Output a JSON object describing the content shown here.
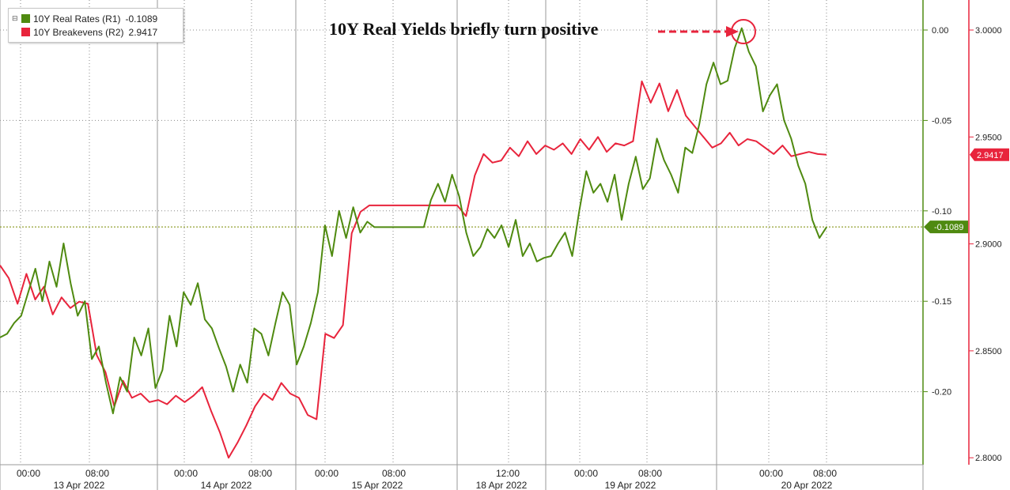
{
  "colors": {
    "green": "#4f8a10",
    "red": "#e8243c",
    "grid": "#8a8a8a",
    "text": "#222222"
  },
  "legend": {
    "toggle_icon": "collapse-toggle-icon",
    "items": [
      {
        "label": "10Y Real Rates (R1)",
        "value": "-0.1089"
      },
      {
        "label": "10Y Breakevens (R2)",
        "value": "2.9417"
      }
    ]
  },
  "annotation": {
    "text": "10Y Real Yields briefly turn positive"
  },
  "chart_data": {
    "type": "line",
    "x_day_labels": [
      "13 Apr 2022",
      "14 Apr 2022",
      "15 Apr 2022",
      "18 Apr 2022",
      "19 Apr 2022",
      "20 Apr 2022"
    ],
    "x_tick_labels": [
      "00:00",
      "08:00",
      "00:00",
      "08:00",
      "00:00",
      "08:00",
      "12:00",
      "00:00",
      "08:00",
      "00:00",
      "08:00"
    ],
    "y_left": {
      "ticks": [
        "0.00",
        "-0.05",
        "-0.10",
        "-0.15",
        "-0.20"
      ],
      "range": [
        -0.24,
        0.015
      ],
      "last_value": "-0.1089"
    },
    "y_right": {
      "ticks": [
        "3.0000",
        "2.9500",
        "2.9000",
        "2.8500",
        "2.8000"
      ],
      "range": [
        2.797,
        3.01
      ],
      "last_value": "2.9417"
    },
    "series": [
      {
        "name": "10Y Real Rates (R1)",
        "axis": "left",
        "values": [
          -0.17,
          -0.168,
          -0.162,
          -0.158,
          -0.145,
          -0.132,
          -0.15,
          -0.128,
          -0.142,
          -0.118,
          -0.14,
          -0.158,
          -0.15,
          -0.182,
          -0.175,
          -0.195,
          -0.212,
          -0.192,
          -0.2,
          -0.17,
          -0.18,
          -0.165,
          -0.198,
          -0.188,
          -0.158,
          -0.175,
          -0.145,
          -0.152,
          -0.14,
          -0.16,
          -0.165,
          -0.176,
          -0.186,
          -0.2,
          -0.185,
          -0.195,
          -0.165,
          -0.168,
          -0.18,
          -0.162,
          -0.145,
          -0.152,
          -0.185,
          -0.175,
          -0.162,
          -0.145,
          -0.108,
          -0.125,
          -0.1,
          -0.115,
          -0.098,
          -0.112,
          -0.106,
          -0.109,
          -0.109,
          -0.109,
          -0.109,
          -0.109,
          -0.109,
          -0.109,
          -0.109,
          -0.094,
          -0.085,
          -0.095,
          -0.08,
          -0.092,
          -0.112,
          -0.125,
          -0.12,
          -0.11,
          -0.115,
          -0.108,
          -0.12,
          -0.105,
          -0.125,
          -0.118,
          -0.128,
          -0.126,
          -0.125,
          -0.118,
          -0.112,
          -0.125,
          -0.1,
          -0.078,
          -0.09,
          -0.085,
          -0.095,
          -0.08,
          -0.105,
          -0.085,
          -0.07,
          -0.088,
          -0.082,
          -0.06,
          -0.072,
          -0.08,
          -0.09,
          -0.065,
          -0.068,
          -0.052,
          -0.03,
          -0.018,
          -0.03,
          -0.028,
          -0.01,
          0.001,
          -0.012,
          -0.02,
          -0.045,
          -0.036,
          -0.03,
          -0.05,
          -0.06,
          -0.075,
          -0.085,
          -0.105,
          -0.115,
          -0.109
        ]
      },
      {
        "name": "10Y Breakevens (R2)",
        "axis": "right",
        "values": [
          2.89,
          2.884,
          2.872,
          2.886,
          2.874,
          2.88,
          2.867,
          2.875,
          2.87,
          2.873,
          2.872,
          2.848,
          2.84,
          2.824,
          2.836,
          2.828,
          2.83,
          2.826,
          2.827,
          2.825,
          2.829,
          2.826,
          2.829,
          2.833,
          2.822,
          2.812,
          2.8,
          2.807,
          2.815,
          2.824,
          2.83,
          2.827,
          2.835,
          2.83,
          2.828,
          2.82,
          2.818,
          2.858,
          2.856,
          2.862,
          2.905,
          2.915,
          2.918,
          2.918,
          2.918,
          2.918,
          2.918,
          2.918,
          2.918,
          2.918,
          2.918,
          2.918,
          2.918,
          2.913,
          2.932,
          2.942,
          2.938,
          2.939,
          2.945,
          2.941,
          2.948,
          2.942,
          2.946,
          2.944,
          2.947,
          2.942,
          2.949,
          2.944,
          2.95,
          2.943,
          2.947,
          2.946,
          2.948,
          2.976,
          2.966,
          2.975,
          2.962,
          2.972,
          2.96,
          2.955,
          2.95,
          2.945,
          2.947,
          2.952,
          2.946,
          2.949,
          2.948,
          2.945,
          2.942,
          2.946,
          2.941,
          2.942,
          2.943,
          2.942,
          2.9417
        ]
      }
    ],
    "grid": true,
    "legend_position": "top-left"
  }
}
